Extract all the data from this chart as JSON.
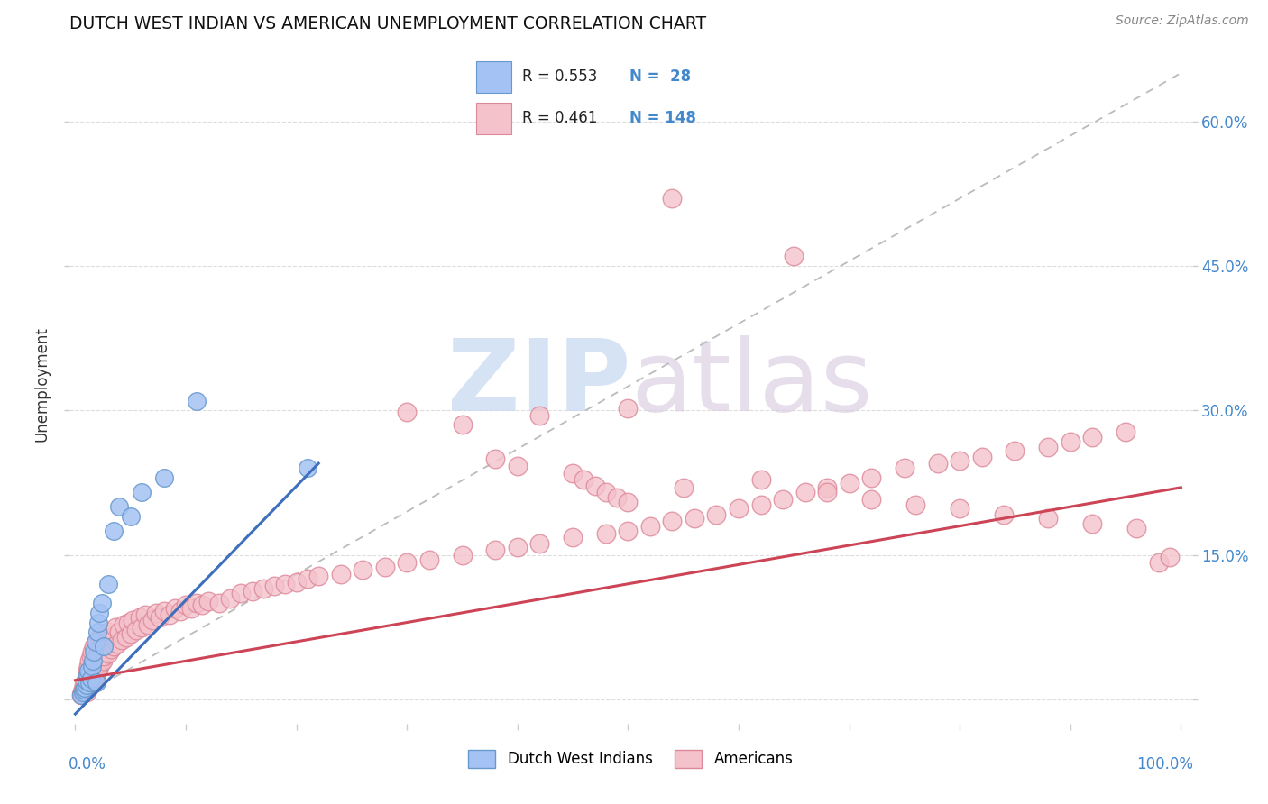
{
  "title": "DUTCH WEST INDIAN VS AMERICAN UNEMPLOYMENT CORRELATION CHART",
  "source": "Source: ZipAtlas.com",
  "ylabel": "Unemployment",
  "blue_fill": "#a4c2f4",
  "blue_edge": "#6699cc",
  "pink_fill": "#f4c2cb",
  "pink_edge": "#dd8899",
  "trend_blue": "#3d6fbd",
  "trend_pink": "#cc4455",
  "diag_color": "#bbbbbb",
  "watermark_zip_color": "#c5d8f0",
  "watermark_atlas_color": "#d8c8e0",
  "right_tick_color": "#4488cc",
  "xlim": [
    -0.005,
    1.01
  ],
  "ylim": [
    -0.025,
    0.68
  ],
  "yticks": [
    0.0,
    0.15,
    0.3,
    0.45,
    0.6
  ],
  "yticklabels_right": [
    "",
    "15.0%",
    "30.0%",
    "45.0%",
    "60.0%"
  ],
  "xtick_label_left": "0.0%",
  "xtick_label_right": "100.0%",
  "legend_r1": "R = 0.553",
  "legend_n1": "N =  28",
  "legend_r2": "R = 0.461",
  "legend_n2": "N = 148",
  "dutch_x": [
    0.005,
    0.007,
    0.008,
    0.009,
    0.01,
    0.01,
    0.011,
    0.012,
    0.013,
    0.014,
    0.015,
    0.016,
    0.017,
    0.018,
    0.019,
    0.02,
    0.021,
    0.022,
    0.024,
    0.026,
    0.03,
    0.035,
    0.04,
    0.05,
    0.06,
    0.08,
    0.11,
    0.21
  ],
  "dutch_y": [
    0.005,
    0.008,
    0.01,
    0.012,
    0.015,
    0.02,
    0.025,
    0.03,
    0.018,
    0.022,
    0.035,
    0.04,
    0.05,
    0.06,
    0.018,
    0.07,
    0.08,
    0.09,
    0.1,
    0.055,
    0.12,
    0.175,
    0.2,
    0.19,
    0.215,
    0.23,
    0.31,
    0.24
  ],
  "amer_x": [
    0.005,
    0.006,
    0.007,
    0.008,
    0.008,
    0.009,
    0.009,
    0.01,
    0.01,
    0.01,
    0.011,
    0.011,
    0.011,
    0.012,
    0.012,
    0.012,
    0.013,
    0.013,
    0.013,
    0.014,
    0.014,
    0.014,
    0.015,
    0.015,
    0.015,
    0.016,
    0.016,
    0.017,
    0.017,
    0.017,
    0.018,
    0.018,
    0.019,
    0.019,
    0.02,
    0.02,
    0.021,
    0.021,
    0.022,
    0.022,
    0.023,
    0.023,
    0.024,
    0.025,
    0.025,
    0.026,
    0.027,
    0.028,
    0.029,
    0.03,
    0.03,
    0.032,
    0.033,
    0.035,
    0.036,
    0.038,
    0.04,
    0.042,
    0.044,
    0.046,
    0.048,
    0.05,
    0.052,
    0.055,
    0.058,
    0.06,
    0.063,
    0.066,
    0.07,
    0.073,
    0.076,
    0.08,
    0.085,
    0.09,
    0.095,
    0.1,
    0.105,
    0.11,
    0.115,
    0.12,
    0.13,
    0.14,
    0.15,
    0.16,
    0.17,
    0.18,
    0.19,
    0.2,
    0.21,
    0.22,
    0.24,
    0.26,
    0.28,
    0.3,
    0.32,
    0.35,
    0.38,
    0.4,
    0.42,
    0.45,
    0.48,
    0.5,
    0.52,
    0.54,
    0.56,
    0.58,
    0.6,
    0.62,
    0.64,
    0.66,
    0.68,
    0.7,
    0.72,
    0.75,
    0.78,
    0.8,
    0.82,
    0.85,
    0.88,
    0.9,
    0.92,
    0.95,
    0.98,
    0.54,
    0.65,
    0.99,
    0.42,
    0.5,
    0.3,
    0.35,
    0.38,
    0.4,
    0.45,
    0.46,
    0.47,
    0.48,
    0.49,
    0.5,
    0.55,
    0.62,
    0.68,
    0.72,
    0.76,
    0.8,
    0.84,
    0.88,
    0.92,
    0.96
  ],
  "amer_y": [
    0.005,
    0.008,
    0.01,
    0.012,
    0.015,
    0.01,
    0.018,
    0.008,
    0.012,
    0.02,
    0.015,
    0.025,
    0.03,
    0.012,
    0.018,
    0.035,
    0.02,
    0.028,
    0.04,
    0.015,
    0.022,
    0.045,
    0.018,
    0.025,
    0.05,
    0.02,
    0.03,
    0.022,
    0.035,
    0.055,
    0.025,
    0.04,
    0.028,
    0.045,
    0.03,
    0.06,
    0.032,
    0.048,
    0.035,
    0.065,
    0.038,
    0.055,
    0.042,
    0.04,
    0.068,
    0.045,
    0.058,
    0.05,
    0.062,
    0.048,
    0.07,
    0.052,
    0.065,
    0.055,
    0.075,
    0.058,
    0.07,
    0.062,
    0.078,
    0.065,
    0.08,
    0.068,
    0.082,
    0.072,
    0.085,
    0.075,
    0.088,
    0.078,
    0.082,
    0.09,
    0.085,
    0.092,
    0.088,
    0.095,
    0.092,
    0.098,
    0.095,
    0.1,
    0.098,
    0.102,
    0.1,
    0.105,
    0.11,
    0.112,
    0.115,
    0.118,
    0.12,
    0.122,
    0.125,
    0.128,
    0.13,
    0.135,
    0.138,
    0.142,
    0.145,
    0.15,
    0.155,
    0.158,
    0.162,
    0.168,
    0.172,
    0.175,
    0.18,
    0.185,
    0.188,
    0.192,
    0.198,
    0.202,
    0.208,
    0.215,
    0.22,
    0.225,
    0.23,
    0.24,
    0.245,
    0.248,
    0.252,
    0.258,
    0.262,
    0.268,
    0.272,
    0.278,
    0.142,
    0.52,
    0.46,
    0.148,
    0.295,
    0.302,
    0.298,
    0.285,
    0.25,
    0.242,
    0.235,
    0.228,
    0.222,
    0.215,
    0.21,
    0.205,
    0.22,
    0.228,
    0.215,
    0.208,
    0.202,
    0.198,
    0.192,
    0.188,
    0.182,
    0.178
  ]
}
